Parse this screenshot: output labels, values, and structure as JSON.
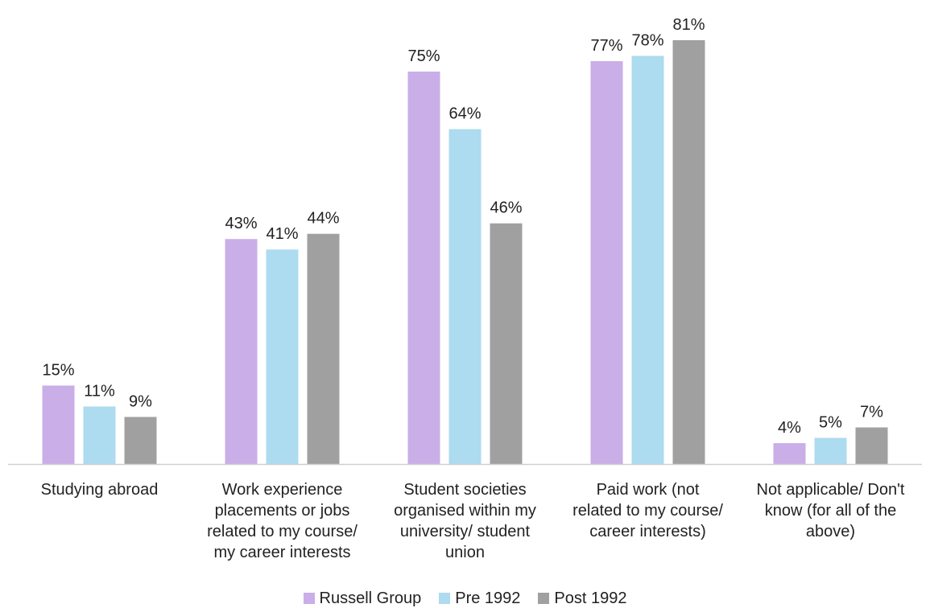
{
  "chart_data": {
    "type": "bar",
    "categories": [
      [
        "Studying abroad"
      ],
      [
        "Work experience",
        "placements or jobs",
        "related to my course/",
        "my career interests"
      ],
      [
        "Student societies",
        "organised within my",
        "university/ student",
        "union"
      ],
      [
        "Paid work (not",
        "related to my course/",
        "career interests)"
      ],
      [
        "Not applicable/ Don't",
        "know (for all of the",
        "above)"
      ]
    ],
    "series": [
      {
        "name": "Russell Group",
        "color": "#C9AEE8",
        "values": [
          15,
          43,
          75,
          77,
          4
        ]
      },
      {
        "name": "Pre 1992",
        "color": "#ADDBEF",
        "values": [
          11,
          41,
          64,
          78,
          5
        ]
      },
      {
        "name": "Post 1992",
        "color": "#A0A0A0",
        "values": [
          9,
          44,
          46,
          81,
          7
        ]
      }
    ],
    "value_suffix": "%",
    "ylim": [
      0,
      90
    ],
    "grid": false,
    "legend": "bottom-center"
  }
}
